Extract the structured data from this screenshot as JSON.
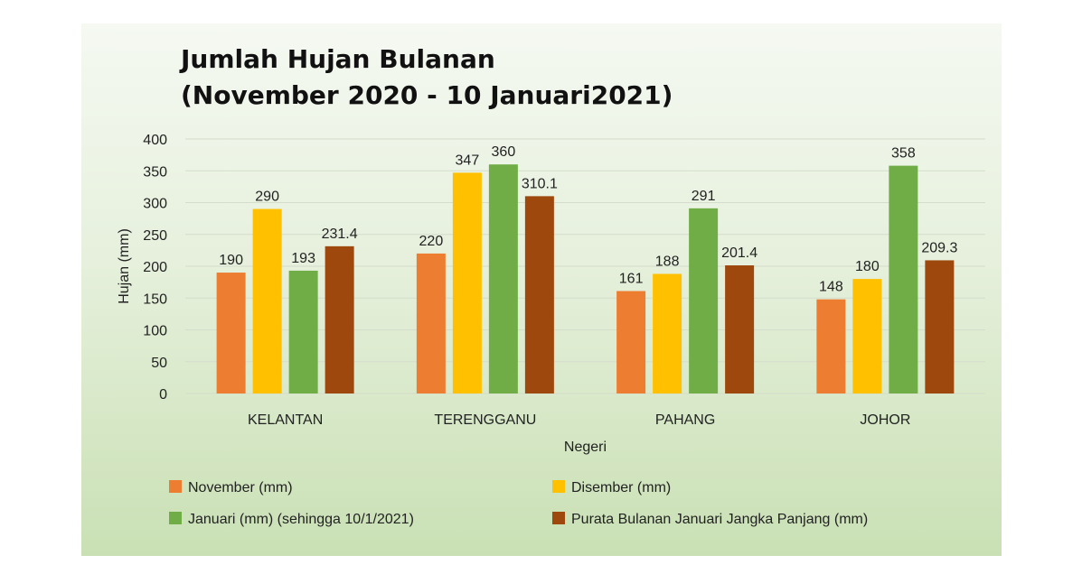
{
  "chart_data": {
    "type": "bar",
    "title": [
      "Jumlah Hujan Bulanan",
      "(November 2020 - 10 Januari2021)"
    ],
    "xlabel": "Negeri",
    "ylabel": "Hujan (mm)",
    "ylim": [
      0,
      400
    ],
    "yticks": [
      0,
      50,
      100,
      150,
      200,
      250,
      300,
      350,
      400
    ],
    "grid": true,
    "legend_position": "bottom",
    "categories": [
      "KELANTAN",
      "TERENGGANU",
      "PAHANG",
      "JOHOR"
    ],
    "series": [
      {
        "name": "November (mm)",
        "color": "#ED7D31",
        "values": [
          190,
          220,
          161,
          148
        ],
        "labels": [
          "190",
          "220",
          "161",
          "148"
        ]
      },
      {
        "name": "Disember (mm)",
        "color": "#FFC000",
        "values": [
          290,
          347,
          188,
          180
        ],
        "labels": [
          "290",
          "347",
          "188",
          "180"
        ]
      },
      {
        "name": "Januari (mm) (sehingga 10/1/2021)",
        "color": "#70AD47",
        "values": [
          193,
          360,
          291,
          358
        ],
        "labels": [
          "193",
          "360",
          "291",
          "358"
        ]
      },
      {
        "name": "Purata Bulanan Januari Jangka Panjang (mm)",
        "color": "#9E480E",
        "values": [
          231.4,
          310.1,
          201.4,
          209.3
        ],
        "labels": [
          "231.4",
          "310.1",
          "201.4",
          "209.3"
        ]
      }
    ]
  }
}
